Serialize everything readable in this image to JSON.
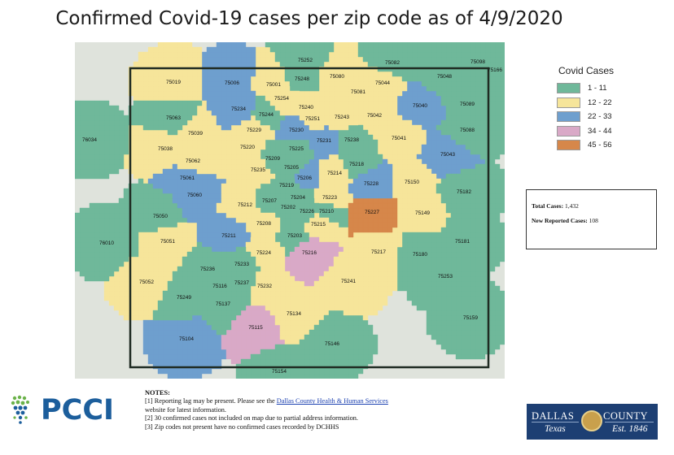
{
  "title": "Confirmed Covid-19 cases per zip code as of 4/9/2020",
  "legend": {
    "title": "Covid Cases",
    "items": [
      {
        "label": "1 - 11",
        "color": "#6fb89a"
      },
      {
        "label": "12 - 22",
        "color": "#f6e59a"
      },
      {
        "label": "22 - 33",
        "color": "#6e9fce"
      },
      {
        "label": "34 - 44",
        "color": "#d9a9c7"
      },
      {
        "label": "45 - 56",
        "color": "#d6874a"
      }
    ]
  },
  "totals": {
    "total_label": "Total Cases:",
    "total_value": "1,432",
    "new_label": "New Reported Cases:",
    "new_value": "108"
  },
  "notes": {
    "heading": "NOTES:",
    "line1_pre": "[1] Reporting lag may be present. Please see the ",
    "line1_link": "Dallas County Health & Human Services",
    "line1_post": "website for latest information.",
    "line2": "[2] 30 confirmed cases not included on map due to partial address information.",
    "line3": "[3] Zip codes not present have no confirmed cases recorded by DCHHS"
  },
  "logos": {
    "pcci": "PCCI",
    "dallas_left": "DALLAS",
    "dallas_right": "COUNTY",
    "dallas_sub_left": "Texas",
    "dallas_sub_right": "Est. 1846"
  },
  "zip_codes": [
    {
      "zip": "75252",
      "cat": 1
    },
    {
      "zip": "75082",
      "cat": 1
    },
    {
      "zip": "75098",
      "cat": 1
    },
    {
      "zip": "75166",
      "cat": 1
    },
    {
      "zip": "75019",
      "cat": 2
    },
    {
      "zip": "75006",
      "cat": 3
    },
    {
      "zip": "75001",
      "cat": 2
    },
    {
      "zip": "75248",
      "cat": 1
    },
    {
      "zip": "75080",
      "cat": 2
    },
    {
      "zip": "75044",
      "cat": 2
    },
    {
      "zip": "75048",
      "cat": 1
    },
    {
      "zip": "75081",
      "cat": 2
    },
    {
      "zip": "75254",
      "cat": 2
    },
    {
      "zip": "75234",
      "cat": 3
    },
    {
      "zip": "75240",
      "cat": 2
    },
    {
      "zip": "75040",
      "cat": 3
    },
    {
      "zip": "75089",
      "cat": 1
    },
    {
      "zip": "75063",
      "cat": 1
    },
    {
      "zip": "75244",
      "cat": 1
    },
    {
      "zip": "75251",
      "cat": 2
    },
    {
      "zip": "75243",
      "cat": 2
    },
    {
      "zip": "75042",
      "cat": 2
    },
    {
      "zip": "75229",
      "cat": 2
    },
    {
      "zip": "75230",
      "cat": 3
    },
    {
      "zip": "75088",
      "cat": 1
    },
    {
      "zip": "75039",
      "cat": 2
    },
    {
      "zip": "75231",
      "cat": 3
    },
    {
      "zip": "75238",
      "cat": 1
    },
    {
      "zip": "75041",
      "cat": 2
    },
    {
      "zip": "76034",
      "cat": 1
    },
    {
      "zip": "75038",
      "cat": 2
    },
    {
      "zip": "75220",
      "cat": 2
    },
    {
      "zip": "75225",
      "cat": 1
    },
    {
      "zip": "75043",
      "cat": 3
    },
    {
      "zip": "75062",
      "cat": 2
    },
    {
      "zip": "75209",
      "cat": 1
    },
    {
      "zip": "75218",
      "cat": 1
    },
    {
      "zip": "75235",
      "cat": 2
    },
    {
      "zip": "75205",
      "cat": 1
    },
    {
      "zip": "75214",
      "cat": 2
    },
    {
      "zip": "75061",
      "cat": 3
    },
    {
      "zip": "75206",
      "cat": 3
    },
    {
      "zip": "75228",
      "cat": 3
    },
    {
      "zip": "75150",
      "cat": 2
    },
    {
      "zip": "75219",
      "cat": 1
    },
    {
      "zip": "75182",
      "cat": 1
    },
    {
      "zip": "75060",
      "cat": 3
    },
    {
      "zip": "75204",
      "cat": 1
    },
    {
      "zip": "75223",
      "cat": 2
    },
    {
      "zip": "75212",
      "cat": 2
    },
    {
      "zip": "75207",
      "cat": 1
    },
    {
      "zip": "75202",
      "cat": 1
    },
    {
      "zip": "75226",
      "cat": 1
    },
    {
      "zip": "75210",
      "cat": 1
    },
    {
      "zip": "75227",
      "cat": 5
    },
    {
      "zip": "75149",
      "cat": 2
    },
    {
      "zip": "75050",
      "cat": 1
    },
    {
      "zip": "75208",
      "cat": 2
    },
    {
      "zip": "75215",
      "cat": 2
    },
    {
      "zip": "75211",
      "cat": 3
    },
    {
      "zip": "75203",
      "cat": 1
    },
    {
      "zip": "76010",
      "cat": 1
    },
    {
      "zip": "75051",
      "cat": 2
    },
    {
      "zip": "75181",
      "cat": 1
    },
    {
      "zip": "75224",
      "cat": 2
    },
    {
      "zip": "75216",
      "cat": 4
    },
    {
      "zip": "75217",
      "cat": 2
    },
    {
      "zip": "75180",
      "cat": 1
    },
    {
      "zip": "75233",
      "cat": 1
    },
    {
      "zip": "75236",
      "cat": 1
    },
    {
      "zip": "75052",
      "cat": 2
    },
    {
      "zip": "75253",
      "cat": 1
    },
    {
      "zip": "75237",
      "cat": 1
    },
    {
      "zip": "75116",
      "cat": 1
    },
    {
      "zip": "75232",
      "cat": 2
    },
    {
      "zip": "75241",
      "cat": 2
    },
    {
      "zip": "75249",
      "cat": 1
    },
    {
      "zip": "75137",
      "cat": 1
    },
    {
      "zip": "75134",
      "cat": 2
    },
    {
      "zip": "75159",
      "cat": 1
    },
    {
      "zip": "75115",
      "cat": 4
    },
    {
      "zip": "75104",
      "cat": 3
    },
    {
      "zip": "75146",
      "cat": 1
    },
    {
      "zip": "75154",
      "cat": 1
    }
  ]
}
